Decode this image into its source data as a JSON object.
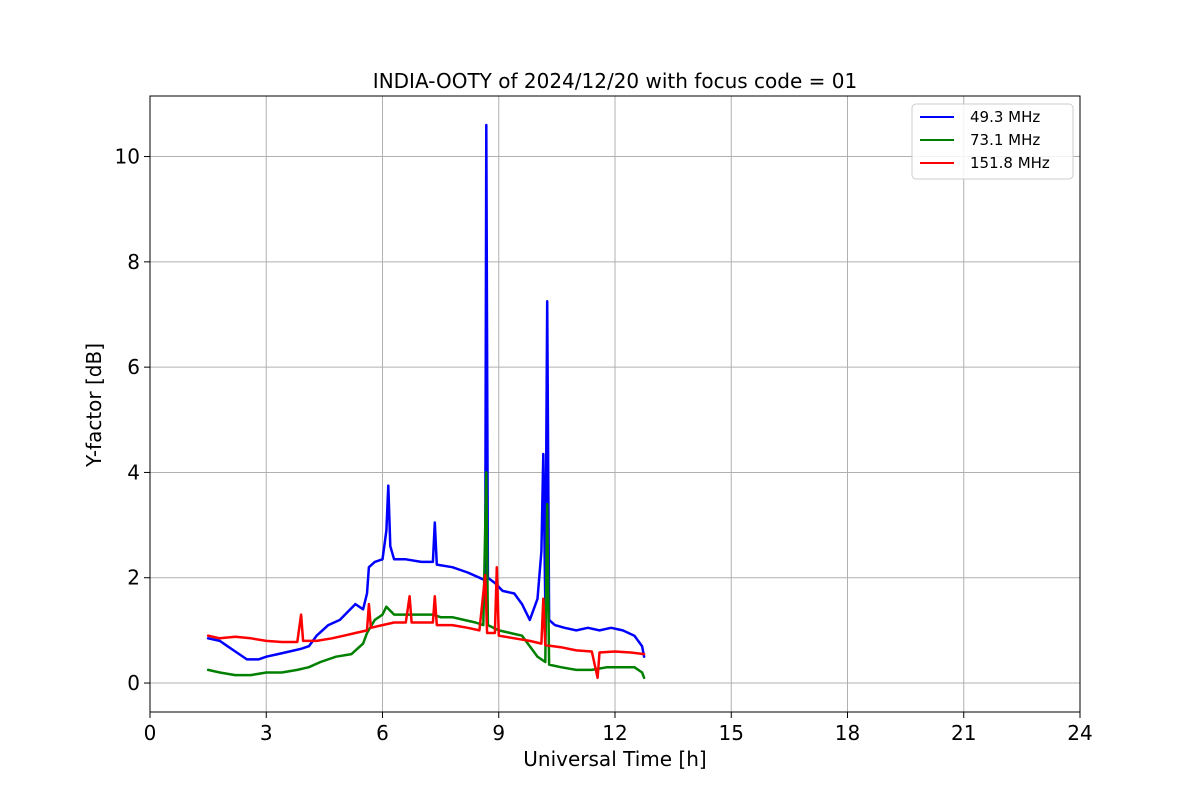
{
  "chart_data": {
    "type": "line",
    "title": "INDIA-OOTY of 2024/12/20 with focus code = 01",
    "xlabel": "Universal Time [h]",
    "ylabel": "Y-factor [dB]",
    "xlim": [
      0,
      24
    ],
    "ylim": [
      -0.55,
      11.15
    ],
    "xticks": [
      0,
      3,
      6,
      9,
      12,
      15,
      18,
      21,
      24
    ],
    "yticks": [
      0,
      2,
      4,
      6,
      8,
      10
    ],
    "grid": true,
    "legend_position": "top-right",
    "series": [
      {
        "name": "49.3 MHz",
        "color": "#0000ff",
        "points": [
          [
            1.5,
            0.85
          ],
          [
            1.8,
            0.8
          ],
          [
            2.0,
            0.7
          ],
          [
            2.2,
            0.6
          ],
          [
            2.5,
            0.45
          ],
          [
            2.8,
            0.45
          ],
          [
            3.0,
            0.5
          ],
          [
            3.3,
            0.55
          ],
          [
            3.6,
            0.6
          ],
          [
            3.9,
            0.65
          ],
          [
            4.1,
            0.7
          ],
          [
            4.3,
            0.9
          ],
          [
            4.6,
            1.1
          ],
          [
            4.9,
            1.2
          ],
          [
            5.1,
            1.35
          ],
          [
            5.3,
            1.5
          ],
          [
            5.5,
            1.4
          ],
          [
            5.6,
            1.7
          ],
          [
            5.65,
            2.2
          ],
          [
            5.8,
            2.3
          ],
          [
            6.0,
            2.35
          ],
          [
            6.1,
            2.9
          ],
          [
            6.15,
            3.75
          ],
          [
            6.2,
            2.6
          ],
          [
            6.3,
            2.35
          ],
          [
            6.6,
            2.35
          ],
          [
            7.0,
            2.3
          ],
          [
            7.2,
            2.3
          ],
          [
            7.3,
            2.3
          ],
          [
            7.35,
            3.05
          ],
          [
            7.4,
            2.25
          ],
          [
            7.8,
            2.2
          ],
          [
            8.2,
            2.1
          ],
          [
            8.5,
            2.0
          ],
          [
            8.65,
            1.95
          ],
          [
            8.68,
            10.6
          ],
          [
            8.72,
            2.0
          ],
          [
            8.9,
            1.9
          ],
          [
            9.1,
            1.75
          ],
          [
            9.4,
            1.7
          ],
          [
            9.6,
            1.5
          ],
          [
            9.8,
            1.2
          ],
          [
            10.0,
            1.6
          ],
          [
            10.1,
            2.5
          ],
          [
            10.15,
            4.35
          ],
          [
            10.2,
            1.5
          ],
          [
            10.25,
            7.25
          ],
          [
            10.3,
            1.2
          ],
          [
            10.45,
            1.1
          ],
          [
            10.7,
            1.05
          ],
          [
            11.0,
            1.0
          ],
          [
            11.3,
            1.05
          ],
          [
            11.6,
            1.0
          ],
          [
            11.9,
            1.05
          ],
          [
            12.2,
            1.0
          ],
          [
            12.5,
            0.9
          ],
          [
            12.7,
            0.7
          ],
          [
            12.75,
            0.5
          ]
        ]
      },
      {
        "name": "73.1 MHz",
        "color": "#008000",
        "points": [
          [
            1.5,
            0.25
          ],
          [
            1.8,
            0.2
          ],
          [
            2.2,
            0.15
          ],
          [
            2.6,
            0.15
          ],
          [
            3.0,
            0.2
          ],
          [
            3.4,
            0.2
          ],
          [
            3.8,
            0.25
          ],
          [
            4.1,
            0.3
          ],
          [
            4.4,
            0.4
          ],
          [
            4.8,
            0.5
          ],
          [
            5.2,
            0.55
          ],
          [
            5.5,
            0.75
          ],
          [
            5.6,
            0.95
          ],
          [
            5.8,
            1.2
          ],
          [
            6.0,
            1.3
          ],
          [
            6.1,
            1.45
          ],
          [
            6.3,
            1.3
          ],
          [
            6.6,
            1.3
          ],
          [
            7.0,
            1.3
          ],
          [
            7.3,
            1.3
          ],
          [
            7.5,
            1.25
          ],
          [
            7.8,
            1.25
          ],
          [
            8.1,
            1.2
          ],
          [
            8.4,
            1.15
          ],
          [
            8.6,
            1.1
          ],
          [
            8.68,
            4.0
          ],
          [
            8.72,
            1.1
          ],
          [
            9.0,
            1.0
          ],
          [
            9.3,
            0.95
          ],
          [
            9.6,
            0.9
          ],
          [
            9.8,
            0.7
          ],
          [
            10.0,
            0.5
          ],
          [
            10.2,
            0.4
          ],
          [
            10.25,
            3.4
          ],
          [
            10.3,
            0.35
          ],
          [
            10.6,
            0.3
          ],
          [
            11.0,
            0.25
          ],
          [
            11.4,
            0.25
          ],
          [
            11.8,
            0.3
          ],
          [
            12.2,
            0.3
          ],
          [
            12.5,
            0.3
          ],
          [
            12.7,
            0.2
          ],
          [
            12.75,
            0.1
          ]
        ]
      },
      {
        "name": "151.8 MHz",
        "color": "#ff0000",
        "points": [
          [
            1.5,
            0.9
          ],
          [
            1.8,
            0.85
          ],
          [
            2.2,
            0.88
          ],
          [
            2.6,
            0.85
          ],
          [
            3.0,
            0.8
          ],
          [
            3.4,
            0.78
          ],
          [
            3.8,
            0.78
          ],
          [
            3.9,
            1.3
          ],
          [
            3.95,
            0.8
          ],
          [
            4.3,
            0.8
          ],
          [
            4.7,
            0.85
          ],
          [
            5.0,
            0.9
          ],
          [
            5.3,
            0.95
          ],
          [
            5.6,
            1.0
          ],
          [
            5.65,
            1.5
          ],
          [
            5.7,
            1.05
          ],
          [
            6.0,
            1.1
          ],
          [
            6.3,
            1.15
          ],
          [
            6.6,
            1.15
          ],
          [
            6.7,
            1.65
          ],
          [
            6.75,
            1.15
          ],
          [
            7.0,
            1.15
          ],
          [
            7.3,
            1.15
          ],
          [
            7.35,
            1.65
          ],
          [
            7.4,
            1.1
          ],
          [
            7.8,
            1.1
          ],
          [
            8.2,
            1.05
          ],
          [
            8.5,
            1.0
          ],
          [
            8.65,
            2.05
          ],
          [
            8.7,
            0.95
          ],
          [
            8.9,
            0.95
          ],
          [
            8.95,
            2.2
          ],
          [
            9.0,
            0.9
          ],
          [
            9.4,
            0.85
          ],
          [
            9.8,
            0.8
          ],
          [
            10.1,
            0.75
          ],
          [
            10.15,
            1.6
          ],
          [
            10.2,
            0.72
          ],
          [
            10.6,
            0.68
          ],
          [
            11.0,
            0.62
          ],
          [
            11.4,
            0.6
          ],
          [
            11.55,
            0.1
          ],
          [
            11.6,
            0.58
          ],
          [
            12.0,
            0.6
          ],
          [
            12.4,
            0.58
          ],
          [
            12.75,
            0.55
          ]
        ]
      }
    ]
  }
}
